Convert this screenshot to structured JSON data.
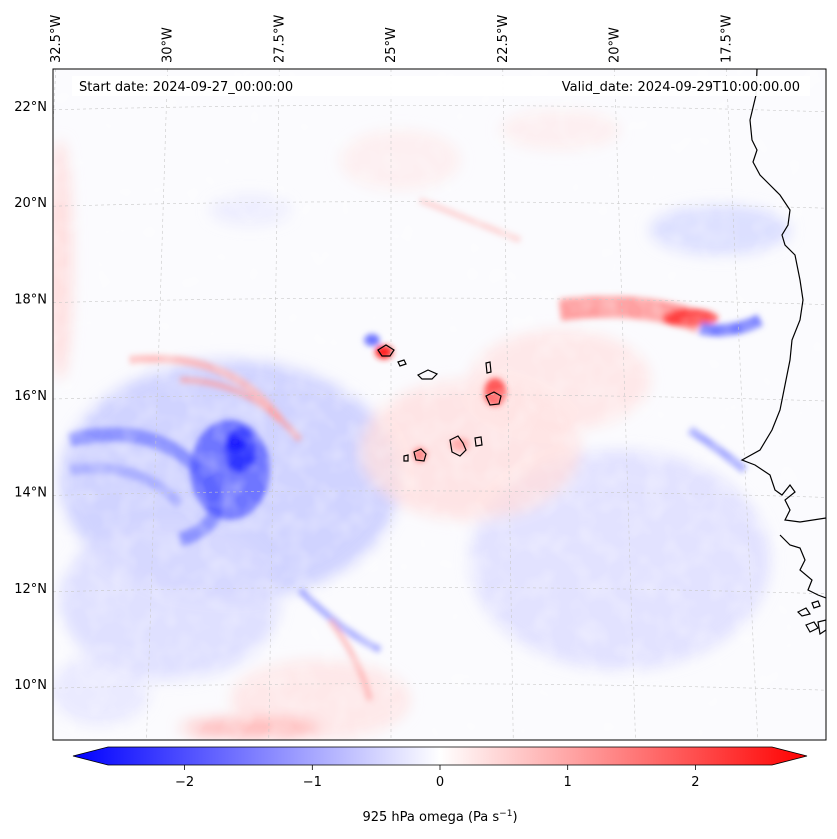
{
  "map": {
    "start_date_text": "Start date: 2024-09-27_00:00:00",
    "valid_date_text": "Valid_date: 2024-09-29T10:00:00.00",
    "lon_ticks": [
      {
        "lon": -32.5,
        "label": "32.5°W"
      },
      {
        "lon": -30.0,
        "label": "30°W"
      },
      {
        "lon": -27.5,
        "label": "27.5°W"
      },
      {
        "lon": -25.0,
        "label": "25°W"
      },
      {
        "lon": -22.5,
        "label": "22.5°W"
      },
      {
        "lon": -20.0,
        "label": "20°W"
      },
      {
        "lon": -17.5,
        "label": "17.5°W"
      }
    ],
    "lat_ticks": [
      {
        "lat": 22,
        "label": "22°N"
      },
      {
        "lat": 20,
        "label": "20°N"
      },
      {
        "lat": 18,
        "label": "18°N"
      },
      {
        "lat": 16,
        "label": "16°N"
      },
      {
        "lat": 14,
        "label": "14°N"
      },
      {
        "lat": 12,
        "label": "12°N"
      },
      {
        "lat": 10,
        "label": "10°N"
      }
    ],
    "colors": {
      "negative": "#0000ff",
      "zero": "#ffffff",
      "positive": "#ff0000",
      "coastline": "#000000",
      "gridline": "#c8c8c8"
    }
  },
  "colorbar": {
    "label": "925 hPa omega (Pa s",
    "label_superscript": "−1",
    "label_close": ")",
    "vmin": -2.6,
    "vmax": 2.6,
    "ticks": [
      {
        "value": -2,
        "label": "−2"
      },
      {
        "value": -1,
        "label": "−1"
      },
      {
        "value": 0,
        "label": "0"
      },
      {
        "value": 1,
        "label": "1"
      },
      {
        "value": 2,
        "label": "2"
      }
    ]
  }
}
